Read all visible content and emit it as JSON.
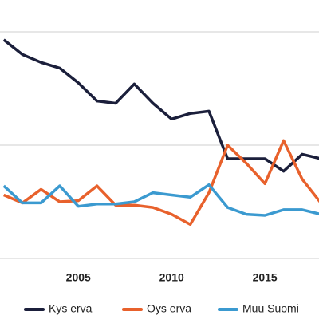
{
  "chart_data": {
    "type": "line",
    "x": [
      2001,
      2002,
      2003,
      2004,
      2005,
      2006,
      2007,
      2008,
      2009,
      2010,
      2011,
      2012,
      2013,
      2014,
      2015,
      2016,
      2017,
      2018
    ],
    "series": [
      {
        "name": "Kys erva",
        "color": "#1b1f3b",
        "values": [
          19.3,
          18.0,
          17.3,
          16.8,
          15.5,
          13.9,
          13.7,
          15.4,
          13.7,
          12.3,
          12.8,
          13.0,
          8.8,
          8.8,
          8.8,
          7.7,
          9.2,
          8.8
        ]
      },
      {
        "name": "Oys erva",
        "color": "#e8612c",
        "values": [
          5.6,
          4.9,
          6.1,
          5.0,
          5.1,
          6.4,
          4.7,
          4.7,
          4.5,
          3.9,
          3.0,
          5.8,
          10.0,
          8.4,
          6.6,
          10.4,
          7.0,
          4.9
        ]
      },
      {
        "name": "Muu Suomi",
        "color": "#3b9ad0",
        "values": [
          6.4,
          4.9,
          4.9,
          6.4,
          4.6,
          4.8,
          4.8,
          5.0,
          5.8,
          5.6,
          5.4,
          6.5,
          4.5,
          3.9,
          3.8,
          4.3,
          4.3,
          3.9
        ]
      }
    ],
    "xlim": [
      2000.8,
      2017.9
    ],
    "xticks": [
      2005,
      2010,
      2015
    ],
    "ylim": [
      0,
      20
    ],
    "yticks": [
      0,
      10,
      20
    ],
    "grid": true
  }
}
